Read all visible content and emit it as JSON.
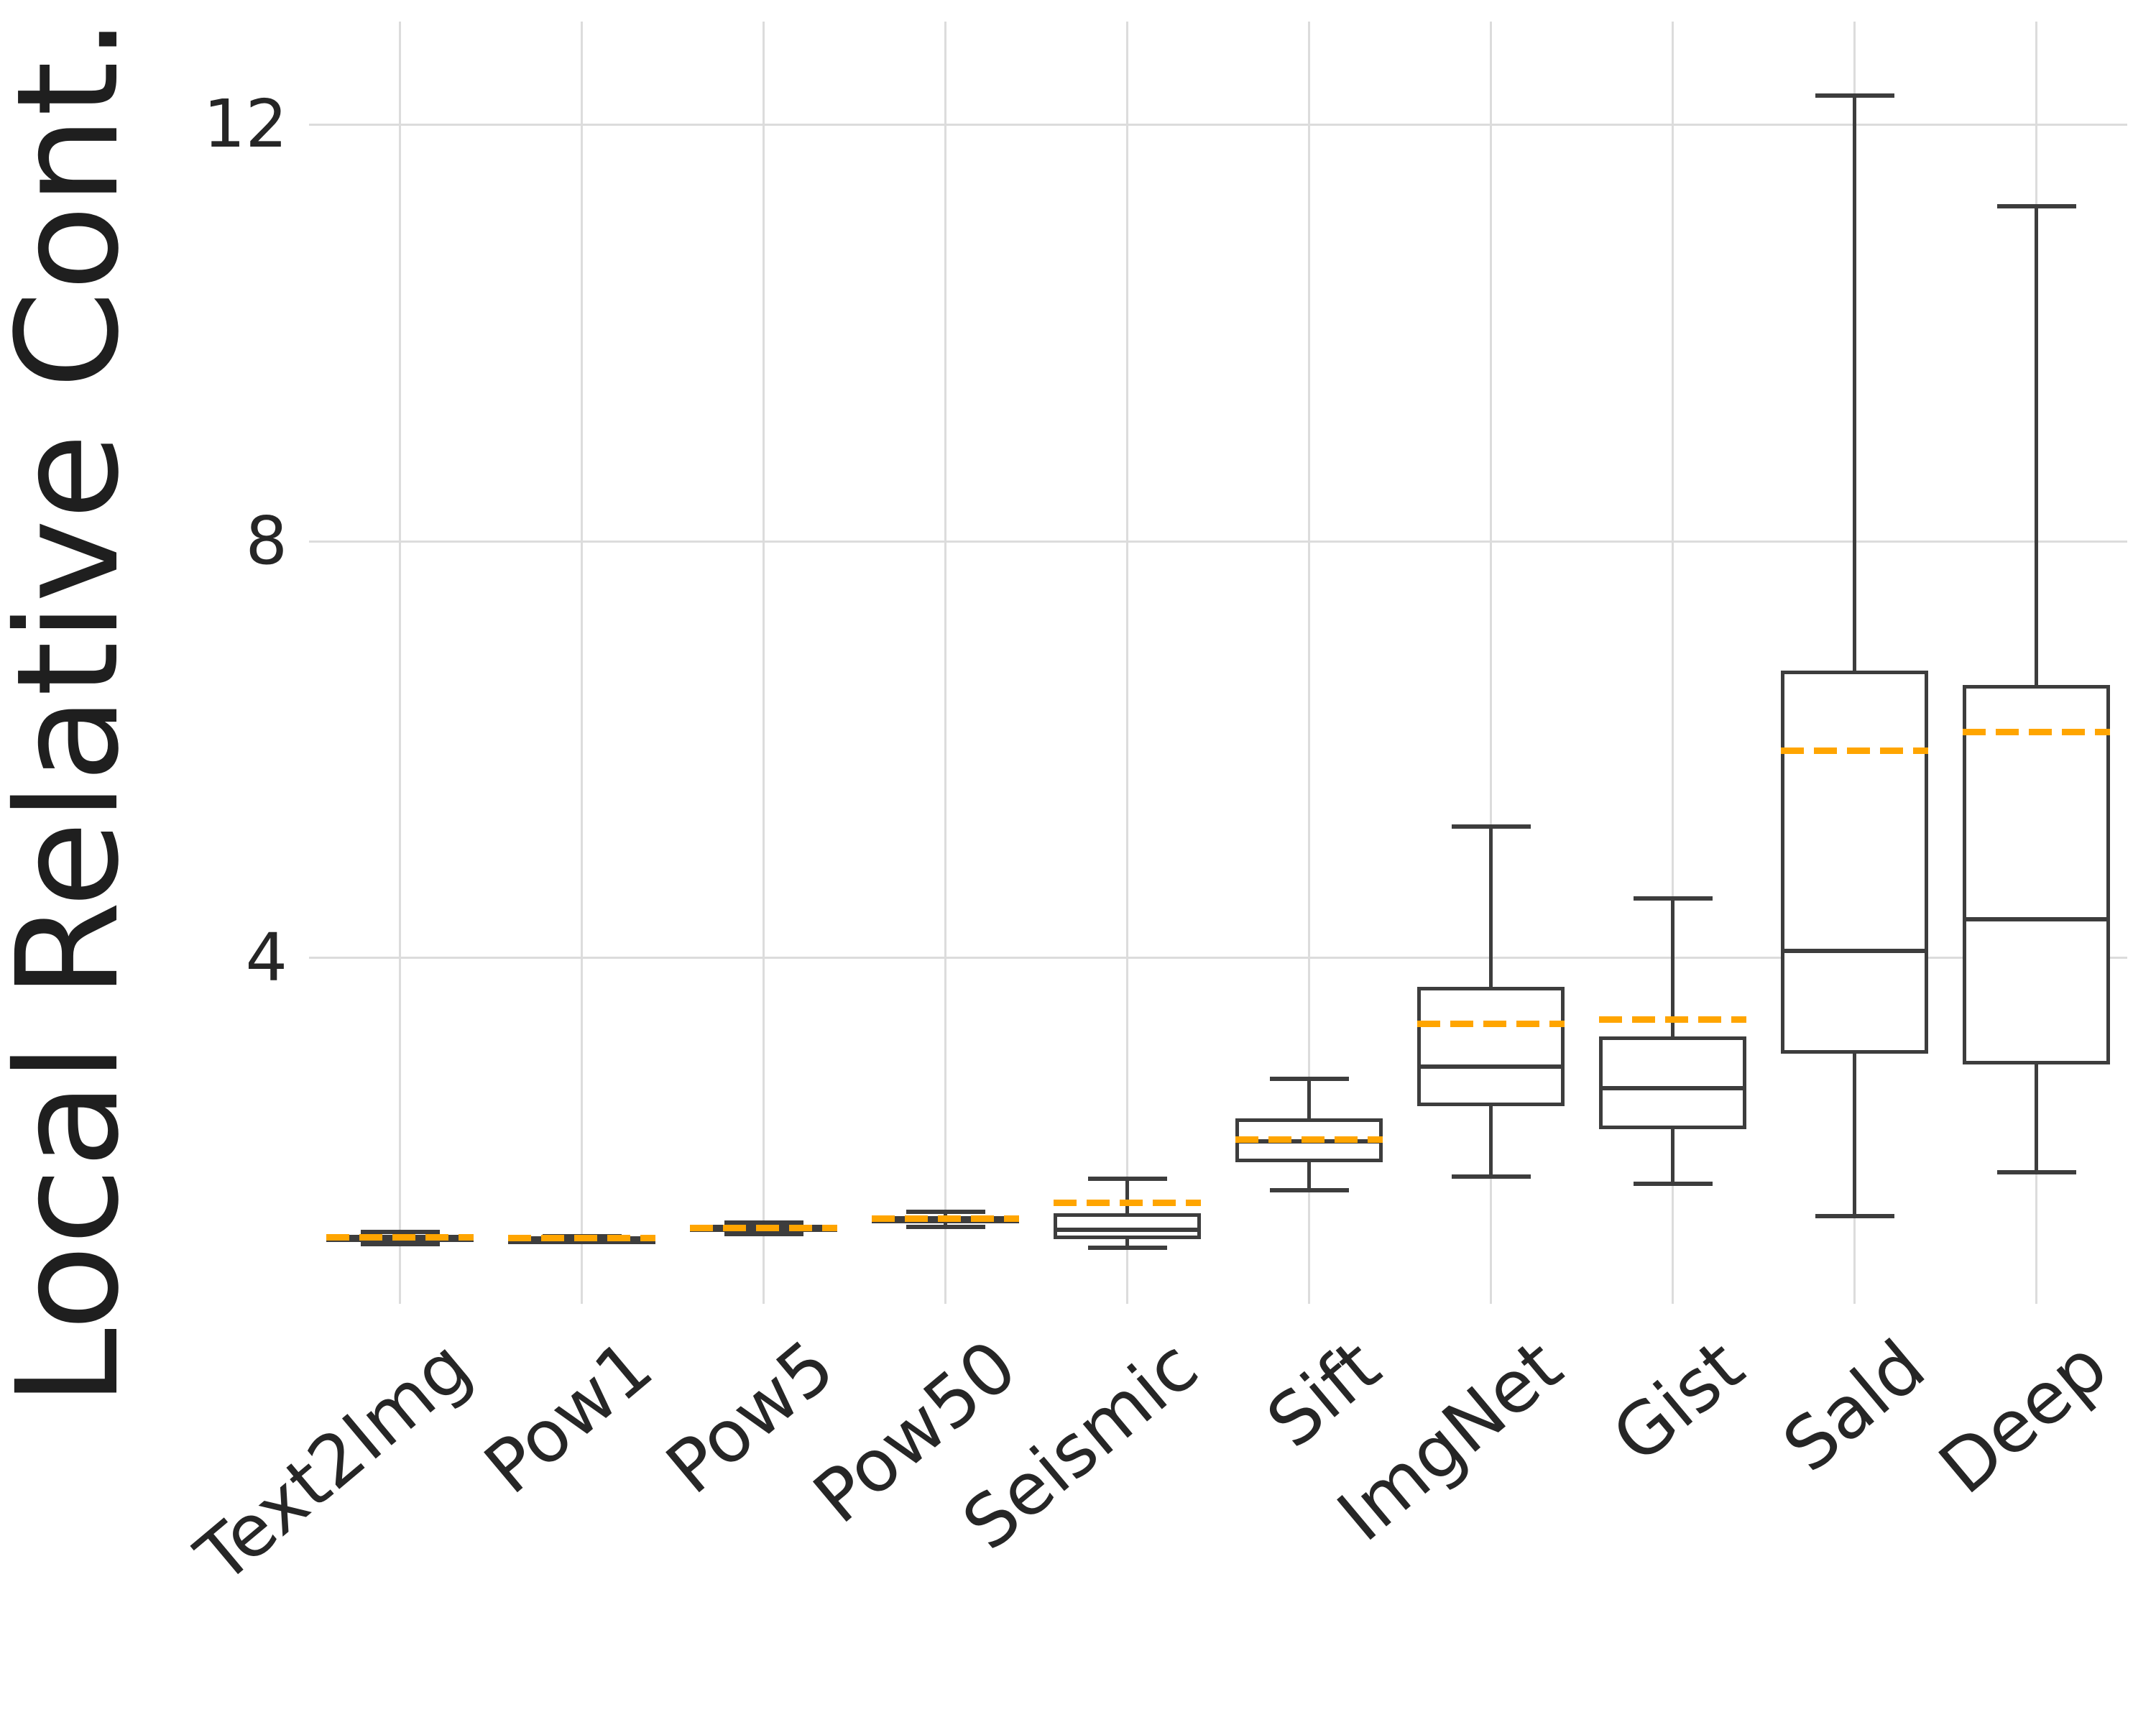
{
  "chart_data": {
    "type": "box",
    "title": "",
    "xlabel": "",
    "ylabel": "Local Relative Cont.",
    "yticks": [
      4,
      8,
      12
    ],
    "ylim": [
      0.68,
      12.99
    ],
    "grid": true,
    "legend": "none",
    "categories": [
      "Text2Img",
      "Pow1",
      "Pow5",
      "Pow50",
      "Seismic",
      "Sift",
      "ImgNet",
      "Gist",
      "Sald",
      "Deep"
    ],
    "series": [
      {
        "name": "Text2Img",
        "whisker_low": 1.25,
        "q1": 1.28,
        "median": 1.31,
        "q3": 1.34,
        "whisker_high": 1.37,
        "mean": 1.32
      },
      {
        "name": "Pow1",
        "whisker_low": 1.29,
        "q1": 1.3,
        "median": 1.31,
        "q3": 1.32,
        "whisker_high": 1.33,
        "mean": 1.31
      },
      {
        "name": "Pow5",
        "whisker_low": 1.35,
        "q1": 1.39,
        "median": 1.41,
        "q3": 1.44,
        "whisker_high": 1.46,
        "mean": 1.41
      },
      {
        "name": "Pow50",
        "whisker_low": 1.42,
        "q1": 1.46,
        "median": 1.49,
        "q3": 1.52,
        "whisker_high": 1.56,
        "mean": 1.5
      },
      {
        "name": "Seismic",
        "whisker_low": 1.22,
        "q1": 1.3,
        "median": 1.39,
        "q3": 1.55,
        "whisker_high": 1.88,
        "mean": 1.65
      },
      {
        "name": "Sift",
        "whisker_low": 1.77,
        "q1": 2.04,
        "median": 2.24,
        "q3": 2.46,
        "whisker_high": 2.84,
        "mean": 2.26
      },
      {
        "name": "ImgNet",
        "whisker_low": 1.9,
        "q1": 2.58,
        "median": 2.96,
        "q3": 3.72,
        "whisker_high": 5.26,
        "mean": 3.37
      },
      {
        "name": "Gist",
        "whisker_low": 1.83,
        "q1": 2.36,
        "median": 2.75,
        "q3": 3.25,
        "whisker_high": 4.57,
        "mean": 3.41
      },
      {
        "name": "Sald",
        "whisker_low": 1.52,
        "q1": 3.08,
        "median": 4.07,
        "q3": 6.76,
        "whisker_high": 12.28,
        "mean": 5.99
      },
      {
        "name": "Deep",
        "whisker_low": 1.94,
        "q1": 2.98,
        "median": 4.37,
        "q3": 6.62,
        "whisker_high": 11.22,
        "mean": 6.17
      }
    ],
    "colors": {
      "box_edge": "#3d3d3d",
      "mean_line": "#FFA500",
      "grid": "#dcdcdc",
      "background": "#ffffff",
      "text": "#262626"
    },
    "style_notes": {
      "mean_line_style": "dashed orange, drawn across full box width",
      "median_line_style": "solid dark gray",
      "spines": "hidden"
    }
  }
}
